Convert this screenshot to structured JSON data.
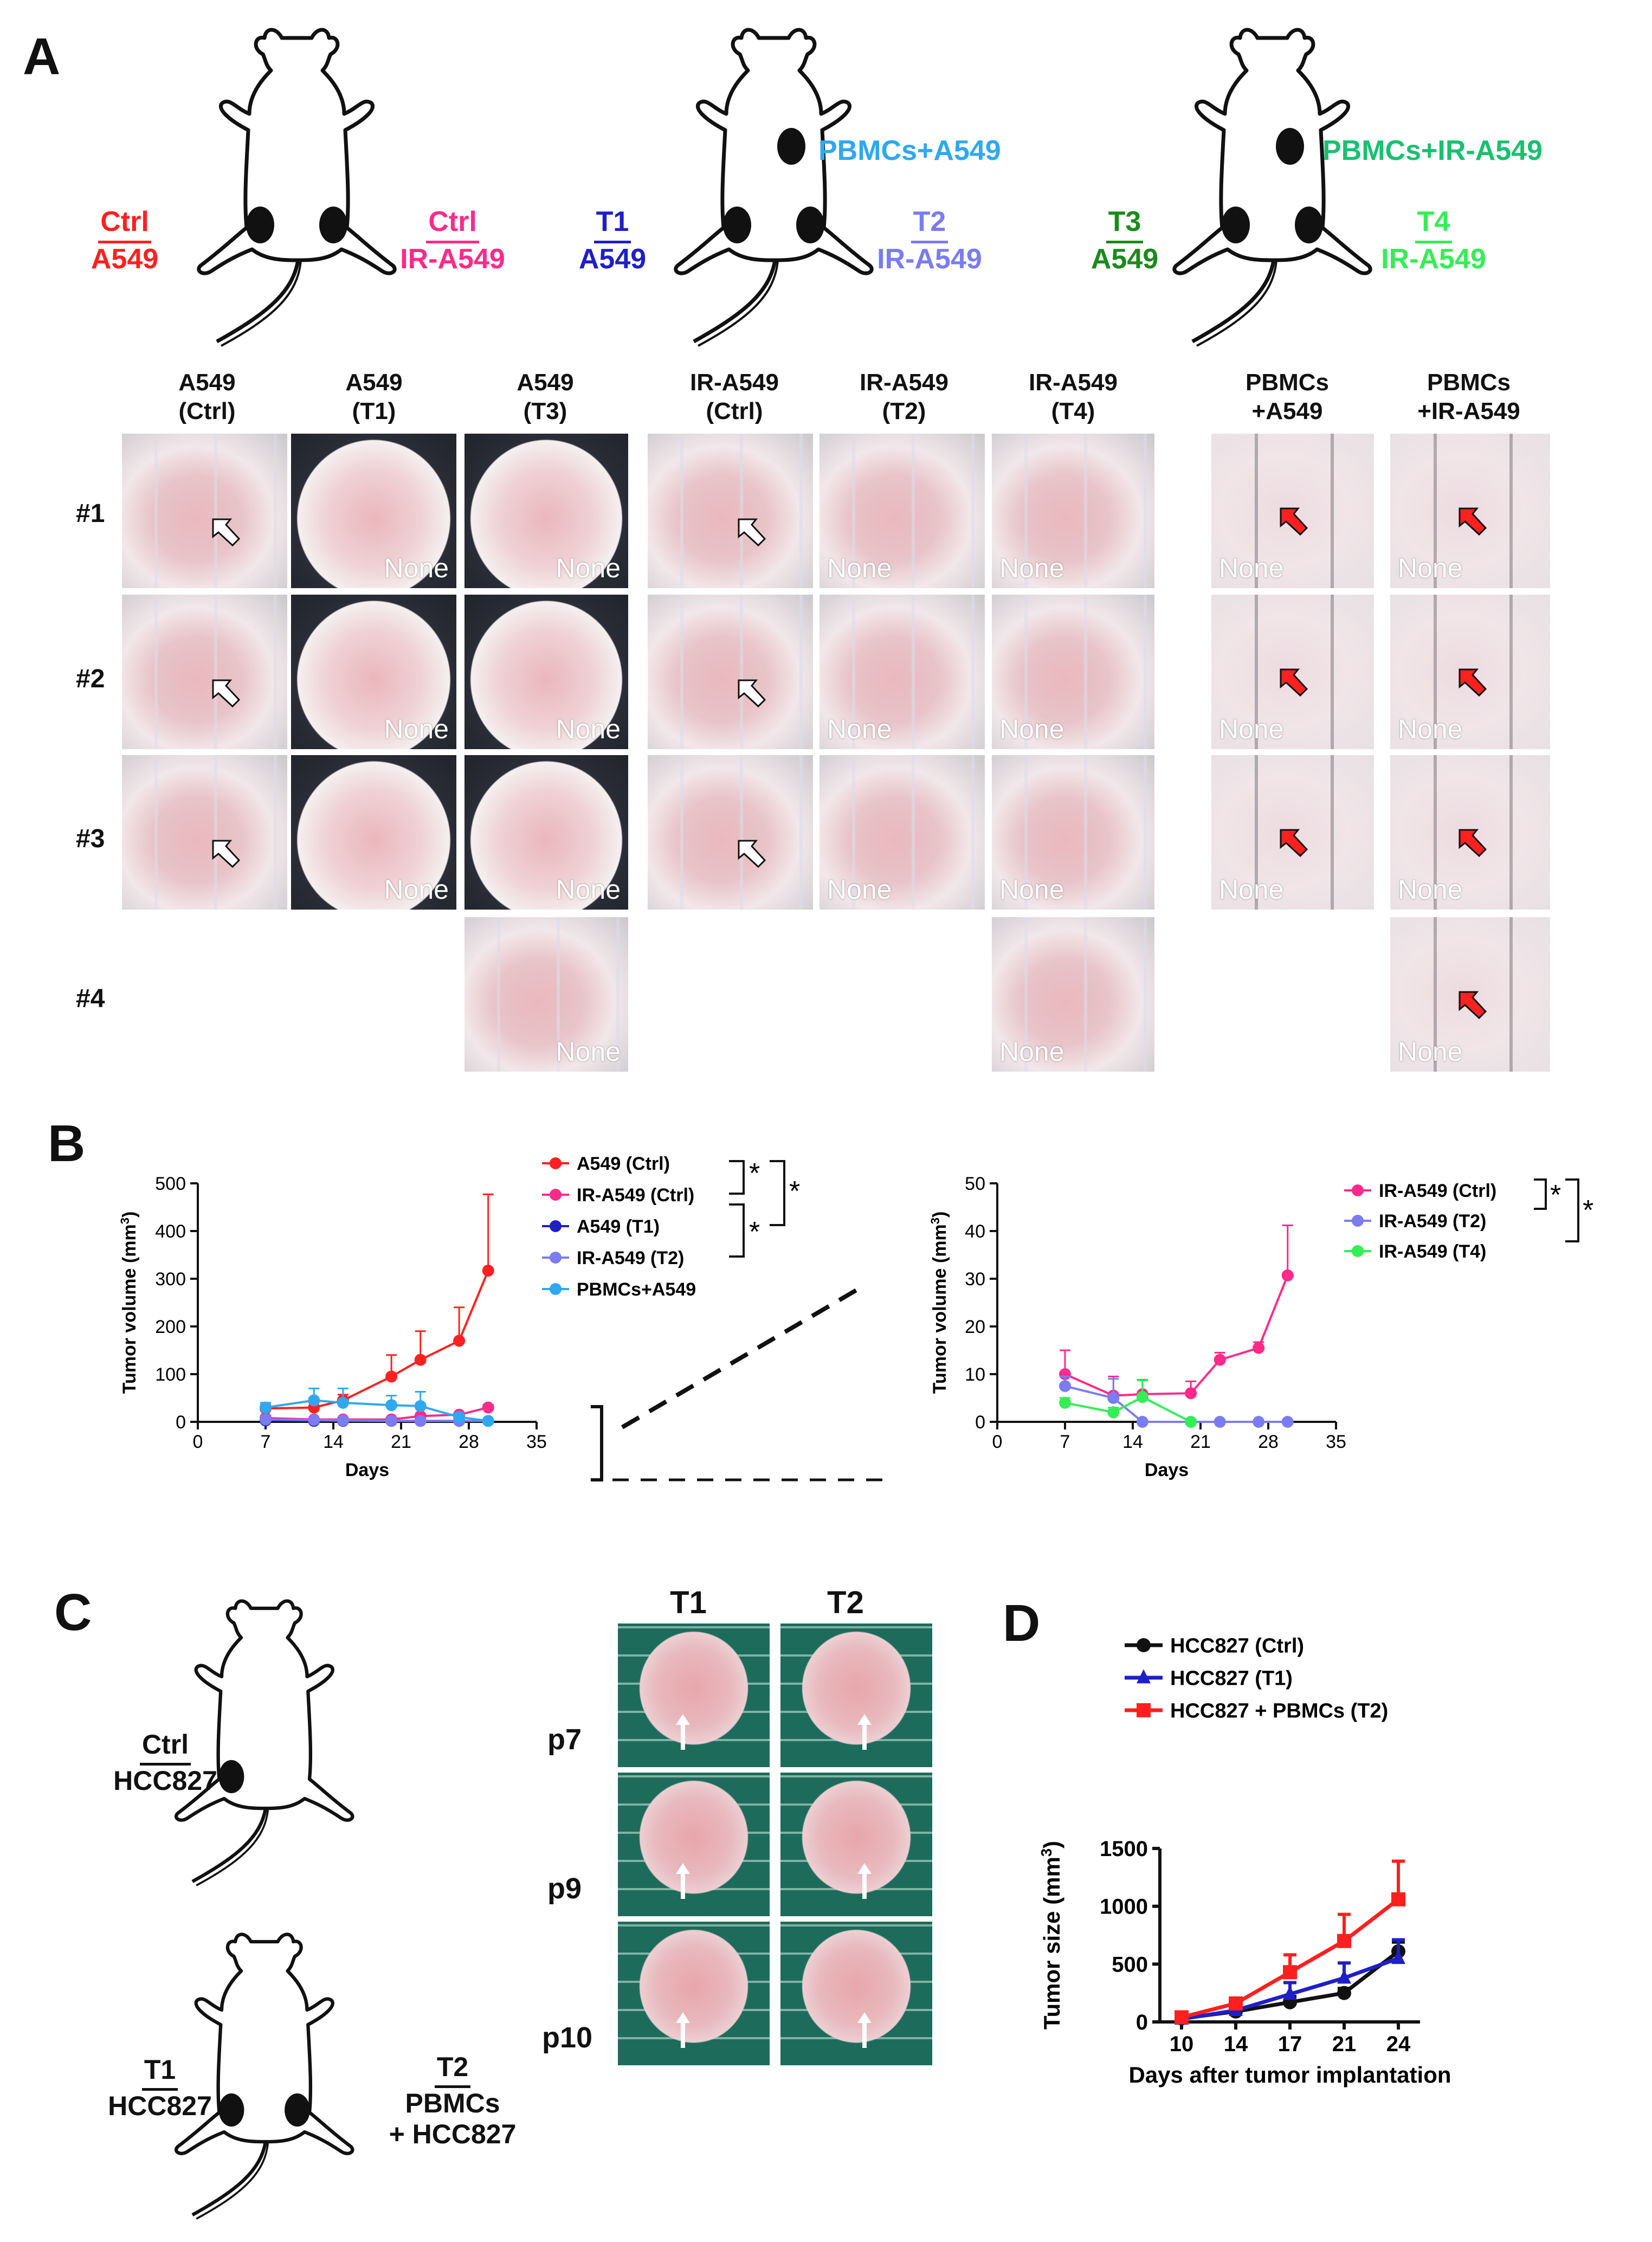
{
  "panel_letters": {
    "a": "A",
    "b": "B",
    "c": "C",
    "d": "D"
  },
  "panelA": {
    "schemes": [
      {
        "left_top": "Ctrl",
        "left_bottom": "A549",
        "right_top": "Ctrl",
        "right_bottom": "IR-A549",
        "upper": ""
      },
      {
        "left_top": "T1",
        "left_bottom": "A549",
        "right_top": "T2",
        "right_bottom": "IR-A549",
        "upper": "PBMCs+A549"
      },
      {
        "left_top": "T3",
        "left_bottom": "A549",
        "right_top": "T4",
        "right_bottom": "IR-A549",
        "upper": "PBMCs+IR-A549"
      }
    ],
    "columns": [
      {
        "line1": "A549",
        "line2": "(Ctrl)"
      },
      {
        "line1": "A549",
        "line2": "(T1)"
      },
      {
        "line1": "A549",
        "line2": "(T3)"
      },
      {
        "line1": "IR-A549",
        "line2": "(Ctrl)"
      },
      {
        "line1": "IR-A549",
        "line2": "(T2)"
      },
      {
        "line1": "IR-A549",
        "line2": "(T4)"
      },
      {
        "line1": "PBMCs",
        "line2": "+A549"
      },
      {
        "line1": "PBMCs",
        "line2": "+IR-A549"
      }
    ],
    "rows": [
      "#1",
      "#2",
      "#3",
      "#4"
    ],
    "none_label": "None",
    "colors": {
      "ctrl_a549": "#ff2020",
      "ctrl_ir": "#ff2a8a",
      "t1": "#1f1fc8",
      "t2": "#7a7cf0",
      "t3": "#1a8a1a",
      "t4": "#33ee55",
      "pbmc_a549": "#2ea8f0",
      "pbmc_ir": "#19c070"
    }
  },
  "panelC": {
    "ctrl_top": "Ctrl",
    "ctrl_bottom": "HCC827",
    "t1_top": "T1",
    "t1_bottom": "HCC827",
    "t2_top": "T2",
    "t2_mid": "PBMCs",
    "t2_bottom": "+ HCC827",
    "col_heads": [
      "T1",
      "T2"
    ],
    "row_heads": [
      "p7",
      "p9",
      "p10"
    ]
  },
  "chart_data": [
    {
      "type": "line",
      "id": "B-left",
      "xlabel": "Days",
      "ylabel": "Tumor volume (mm3)",
      "xlim": [
        0,
        35
      ],
      "ylim": [
        0,
        500
      ],
      "xticks": [
        0,
        7,
        14,
        21,
        28,
        35
      ],
      "yticks": [
        0,
        100,
        200,
        300,
        400,
        500
      ],
      "series": [
        {
          "name": "A549 (Ctrl)",
          "color": "#ff2020",
          "x": [
            7,
            12,
            15,
            20,
            23,
            27,
            30
          ],
          "y": [
            28,
            30,
            45,
            95,
            130,
            170,
            317
          ],
          "err": [
            8,
            10,
            12,
            45,
            60,
            70,
            160
          ]
        },
        {
          "name": "IR-A549 (Ctrl)",
          "color": "#ff2a8a",
          "x": [
            7,
            12,
            15,
            20,
            23,
            27,
            30
          ],
          "y": [
            8,
            5,
            5,
            5,
            12,
            15,
            30
          ],
          "err": [
            3,
            2,
            2,
            2,
            3,
            4,
            6
          ]
        },
        {
          "name": "A549 (T1)",
          "color": "#1f1fc8",
          "x": [
            7,
            12,
            15,
            20,
            23,
            27
          ],
          "y": [
            3,
            2,
            2,
            2,
            2,
            2
          ],
          "err": [
            1,
            1,
            1,
            1,
            1,
            1
          ]
        },
        {
          "name": "IR-A549 (T2)",
          "color": "#7a7cf0",
          "x": [
            7,
            12,
            15,
            20,
            23,
            27,
            30
          ],
          "y": [
            5,
            4,
            3,
            2,
            2,
            2,
            2
          ],
          "err": [
            1,
            1,
            1,
            1,
            1,
            1,
            1
          ]
        },
        {
          "name": "PBMCs+A549",
          "color": "#2ea8f0",
          "x": [
            7,
            12,
            15,
            20,
            23,
            27,
            30
          ],
          "y": [
            30,
            45,
            40,
            35,
            33,
            10,
            2
          ],
          "err": [
            10,
            25,
            30,
            20,
            30,
            8,
            1
          ]
        }
      ],
      "significance": [
        "*",
        "*",
        "*"
      ]
    },
    {
      "type": "line",
      "id": "B-right",
      "xlabel": "Days",
      "ylabel": "Tumor volume (mm3)",
      "xlim": [
        0,
        35
      ],
      "ylim": [
        0,
        50
      ],
      "xticks": [
        0,
        7,
        14,
        21,
        28,
        35
      ],
      "yticks": [
        0,
        10,
        20,
        30,
        40,
        50
      ],
      "series": [
        {
          "name": "IR-A549 (Ctrl)",
          "color": "#ff2a8a",
          "x": [
            7,
            12,
            15,
            20,
            23,
            27,
            30
          ],
          "y": [
            10,
            5.5,
            5.8,
            6,
            13,
            15.5,
            30.7
          ],
          "err": [
            5,
            4,
            3,
            2.5,
            1.5,
            1.2,
            10.5
          ]
        },
        {
          "name": "IR-A549 (T2)",
          "color": "#7a7cf0",
          "x": [
            7,
            12,
            15,
            20,
            23,
            27,
            30
          ],
          "y": [
            7.5,
            5,
            0,
            0,
            0,
            0,
            0
          ],
          "err": [
            2,
            4,
            0,
            0,
            0,
            0,
            0
          ]
        },
        {
          "name": "IR-A549 (T4)",
          "color": "#33ee55",
          "x": [
            7,
            12,
            15,
            20
          ],
          "y": [
            4,
            2,
            5.2,
            0
          ],
          "err": [
            1,
            1,
            3.5,
            0
          ]
        }
      ],
      "significance": [
        "*",
        "*"
      ]
    },
    {
      "type": "line",
      "id": "D",
      "xlabel": "Days after tumor implantation",
      "ylabel": "Tumor size (mm3)",
      "ylim": [
        0,
        1500
      ],
      "categories": [
        "10",
        "14",
        "17",
        "21",
        "24"
      ],
      "yticks": [
        0,
        500,
        1000,
        1500
      ],
      "series": [
        {
          "name": "HCC827 (Ctrl)",
          "color": "#111111",
          "marker": "circle",
          "y": [
            30,
            90,
            170,
            250,
            610
          ],
          "err": [
            10,
            20,
            50,
            40,
            80
          ]
        },
        {
          "name": "HCC827 (T1)",
          "color": "#1f1fc8",
          "marker": "triangle",
          "y": [
            25,
            100,
            240,
            380,
            550
          ],
          "err": [
            8,
            25,
            100,
            130,
            160
          ]
        },
        {
          "name": "HCC827 + PBMCs (T2)",
          "color": "#ff1f1f",
          "marker": "square",
          "y": [
            40,
            160,
            430,
            700,
            1060
          ],
          "err": [
            10,
            30,
            150,
            230,
            330
          ]
        }
      ]
    }
  ]
}
